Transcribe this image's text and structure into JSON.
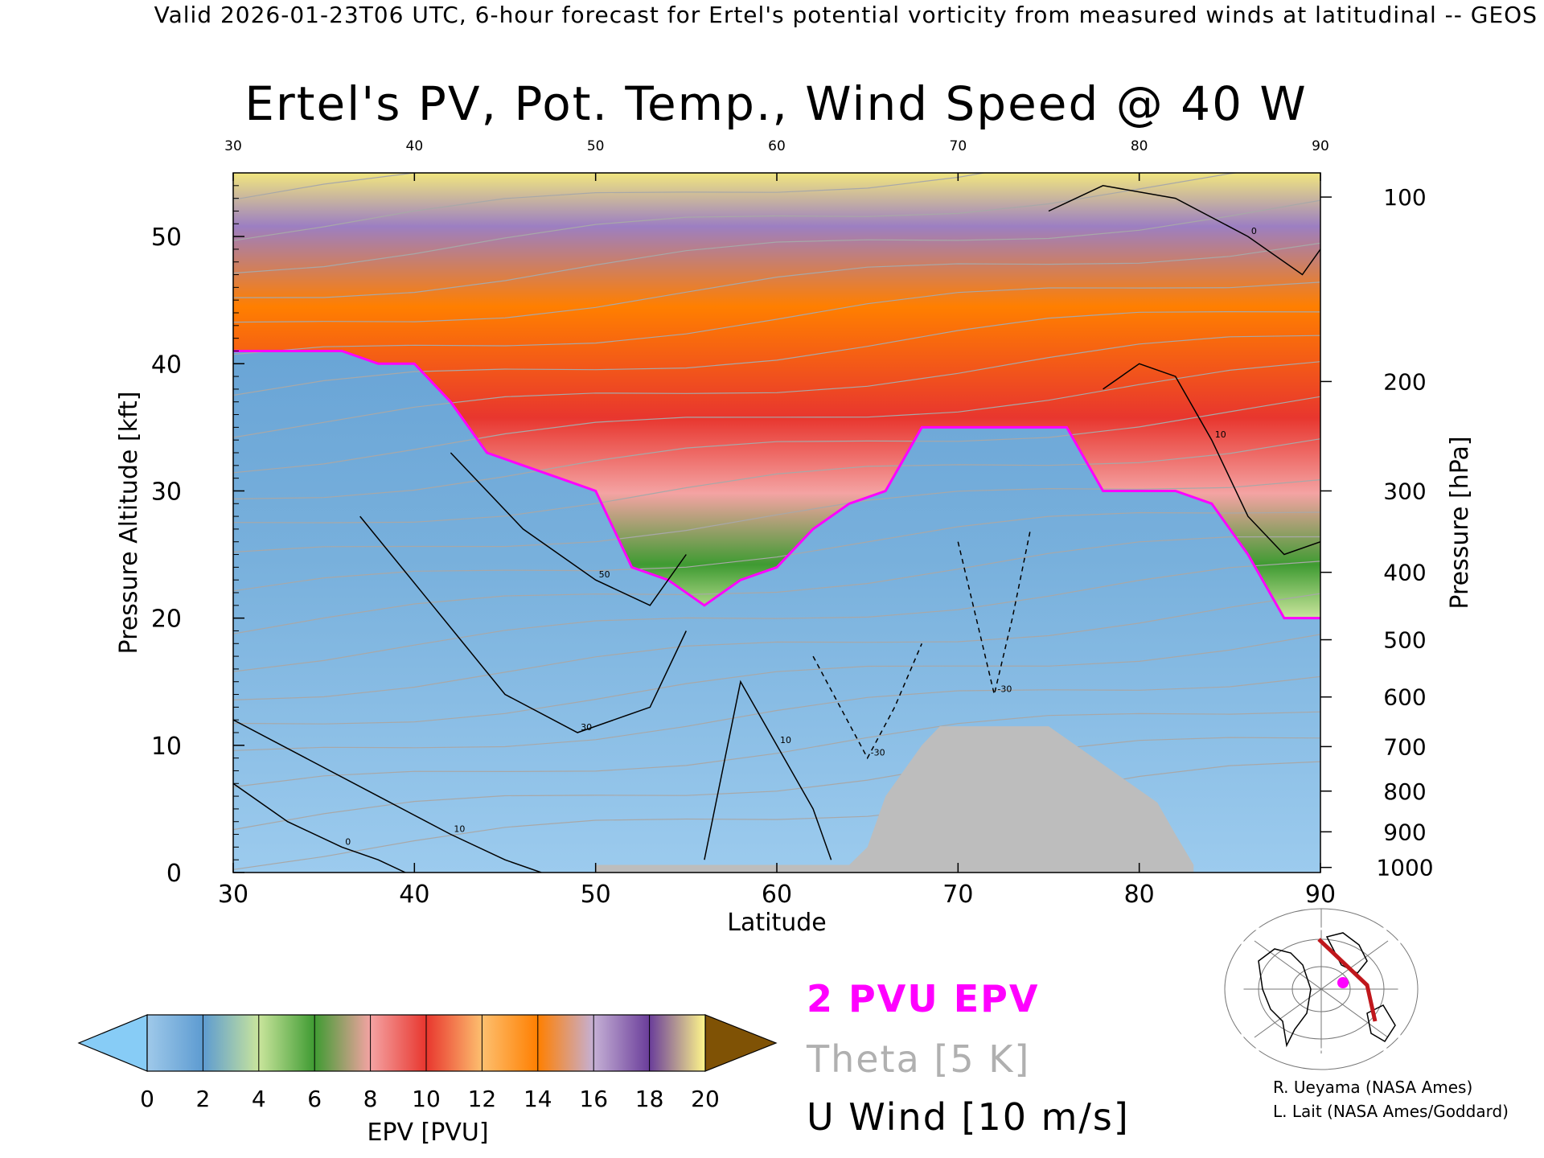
{
  "header": "Valid 2026-01-23T06 UTC, 6-hour forecast for Ertel's potential vorticity from measured winds at latitudinal -- GEOS",
  "chart_data": {
    "type": "heatmap",
    "title": "Ertel's PV, Pot. Temp., Wind Speed @ 40 W",
    "xlabel": "Latitude",
    "ylabel_left": "Pressure Altitude [kft]",
    "ylabel_right": "Pressure [hPa]",
    "xlim": [
      30,
      90
    ],
    "ylim": [
      0,
      55
    ],
    "x_ticks": [
      30,
      40,
      50,
      60,
      70,
      80,
      90
    ],
    "y_ticks": [
      0,
      10,
      20,
      30,
      40,
      50
    ],
    "top_ticks": [
      30,
      40,
      50,
      60,
      70,
      80,
      90
    ],
    "pressure_ticks": [
      {
        "label": "100",
        "kft": 53.1
      },
      {
        "label": "200",
        "kft": 38.6
      },
      {
        "label": "300",
        "kft": 30.0
      },
      {
        "label": "400",
        "kft": 23.6
      },
      {
        "label": "500",
        "kft": 18.3
      },
      {
        "label": "600",
        "kft": 13.8
      },
      {
        "label": "700",
        "kft": 9.9
      },
      {
        "label": "800",
        "kft": 6.4
      },
      {
        "label": "900",
        "kft": 3.2
      },
      {
        "label": "1000",
        "kft": 0.4
      }
    ],
    "pvu2_line": {
      "lat": [
        30,
        32,
        34,
        36,
        38,
        40,
        42,
        44,
        46,
        48,
        50,
        52,
        54,
        56,
        58,
        60,
        62,
        64,
        66,
        68,
        70,
        72,
        74,
        76,
        78,
        80,
        82,
        84,
        86,
        88,
        89,
        90
      ],
      "kft": [
        41,
        41,
        41,
        41,
        40,
        40,
        37,
        33,
        32,
        31,
        30,
        24,
        23,
        21,
        23,
        24,
        27,
        29,
        30,
        35,
        35,
        35,
        35,
        35,
        30,
        30,
        30,
        29,
        25,
        20,
        20,
        20
      ]
    },
    "top_envelope": {
      "lat": [
        30,
        32,
        34,
        36,
        38,
        40,
        42,
        44,
        46,
        48,
        50,
        52,
        54,
        56,
        58,
        60,
        62,
        64,
        66,
        68,
        70,
        72,
        74,
        76,
        78,
        80,
        82,
        84,
        86,
        88,
        90
      ],
      "kft": [
        48,
        49,
        50,
        48,
        46,
        46,
        44,
        40,
        41,
        37,
        34,
        32,
        30,
        28,
        33,
        34,
        36,
        38,
        40,
        42,
        41,
        40,
        43,
        43,
        41,
        42,
        40,
        38,
        36,
        33,
        34
      ]
    },
    "u_wind_contours": [
      {
        "label": "0",
        "lat": [
          30,
          33,
          36,
          38,
          39.5
        ],
        "kft": [
          7,
          4,
          2,
          1,
          0
        ]
      },
      {
        "label": "10",
        "lat": [
          30,
          34,
          38,
          42,
          45,
          47
        ],
        "kft": [
          12,
          9,
          6,
          3,
          1,
          0
        ]
      },
      {
        "label": "30",
        "lat": [
          37,
          41,
          45,
          49,
          53,
          55
        ],
        "kft": [
          28,
          21,
          14,
          11,
          13,
          19
        ]
      },
      {
        "label": "50",
        "lat": [
          42,
          46,
          50,
          53,
          55
        ],
        "kft": [
          33,
          27,
          23,
          21,
          25
        ]
      },
      {
        "label": "10",
        "lat": [
          56,
          57,
          58,
          60,
          62,
          63
        ],
        "kft": [
          1,
          8,
          15,
          10,
          5,
          1
        ]
      },
      {
        "label": "-30",
        "lat": [
          62,
          63.5,
          65,
          66.5,
          68
        ],
        "kft": [
          17,
          13,
          9,
          13,
          18
        ],
        "dashed": true
      },
      {
        "label": "-30",
        "lat": [
          70,
          71,
          72,
          73,
          74
        ],
        "kft": [
          26,
          20,
          14,
          20,
          27
        ],
        "dashed": true
      },
      {
        "label": "10",
        "lat": [
          78,
          80,
          82,
          84,
          86,
          88,
          90
        ],
        "kft": [
          38,
          40,
          39,
          34,
          28,
          25,
          26
        ]
      },
      {
        "label": "0",
        "lat": [
          75,
          78,
          82,
          86,
          89,
          90
        ],
        "kft": [
          52,
          54,
          53,
          50,
          47,
          49
        ]
      }
    ],
    "terrain": {
      "lat": [
        50,
        51,
        52,
        53,
        54,
        55,
        56,
        57,
        58,
        59,
        60,
        61,
        62,
        63,
        64,
        65,
        66,
        67,
        68,
        69,
        70,
        71,
        72,
        73,
        74,
        75,
        76,
        77,
        78,
        79,
        80,
        81,
        82,
        83
      ],
      "kft": [
        0.6,
        0.6,
        0.6,
        0.6,
        0.6,
        0.6,
        0.6,
        0.6,
        0.6,
        0.6,
        0.6,
        0.6,
        0.6,
        0.6,
        0.6,
        2,
        6,
        8,
        10,
        11.5,
        11.5,
        11.5,
        11.5,
        11.5,
        11.5,
        11.5,
        10.5,
        9.5,
        8.5,
        7.5,
        6.5,
        5.5,
        3,
        0.6
      ]
    },
    "colorbar": {
      "label": "EPV [PVU]",
      "ticks": [
        "0",
        "2",
        "4",
        "6",
        "8",
        "10",
        "12",
        "14",
        "16",
        "18",
        "20"
      ],
      "colors": [
        "#9fc9ea",
        "#5d9bd1",
        "#c9e59c",
        "#3f9b32",
        "#f4a3a3",
        "#e8362e",
        "#fdbf6f",
        "#ff7f00",
        "#c5b0d5",
        "#6a3d9a",
        "#fff78a",
        "#7f5205"
      ],
      "under_color": "#87ccf6",
      "over_color": "#7f5205"
    }
  },
  "legend": {
    "pvu": "2 PVU EPV",
    "theta": "Theta [5 K]",
    "uwind": "U Wind [10 m/s]"
  },
  "credits": {
    "line1": "R. Ueyama (NASA Ames)",
    "line2": "L. Lait (NASA Ames/Goddard)"
  }
}
